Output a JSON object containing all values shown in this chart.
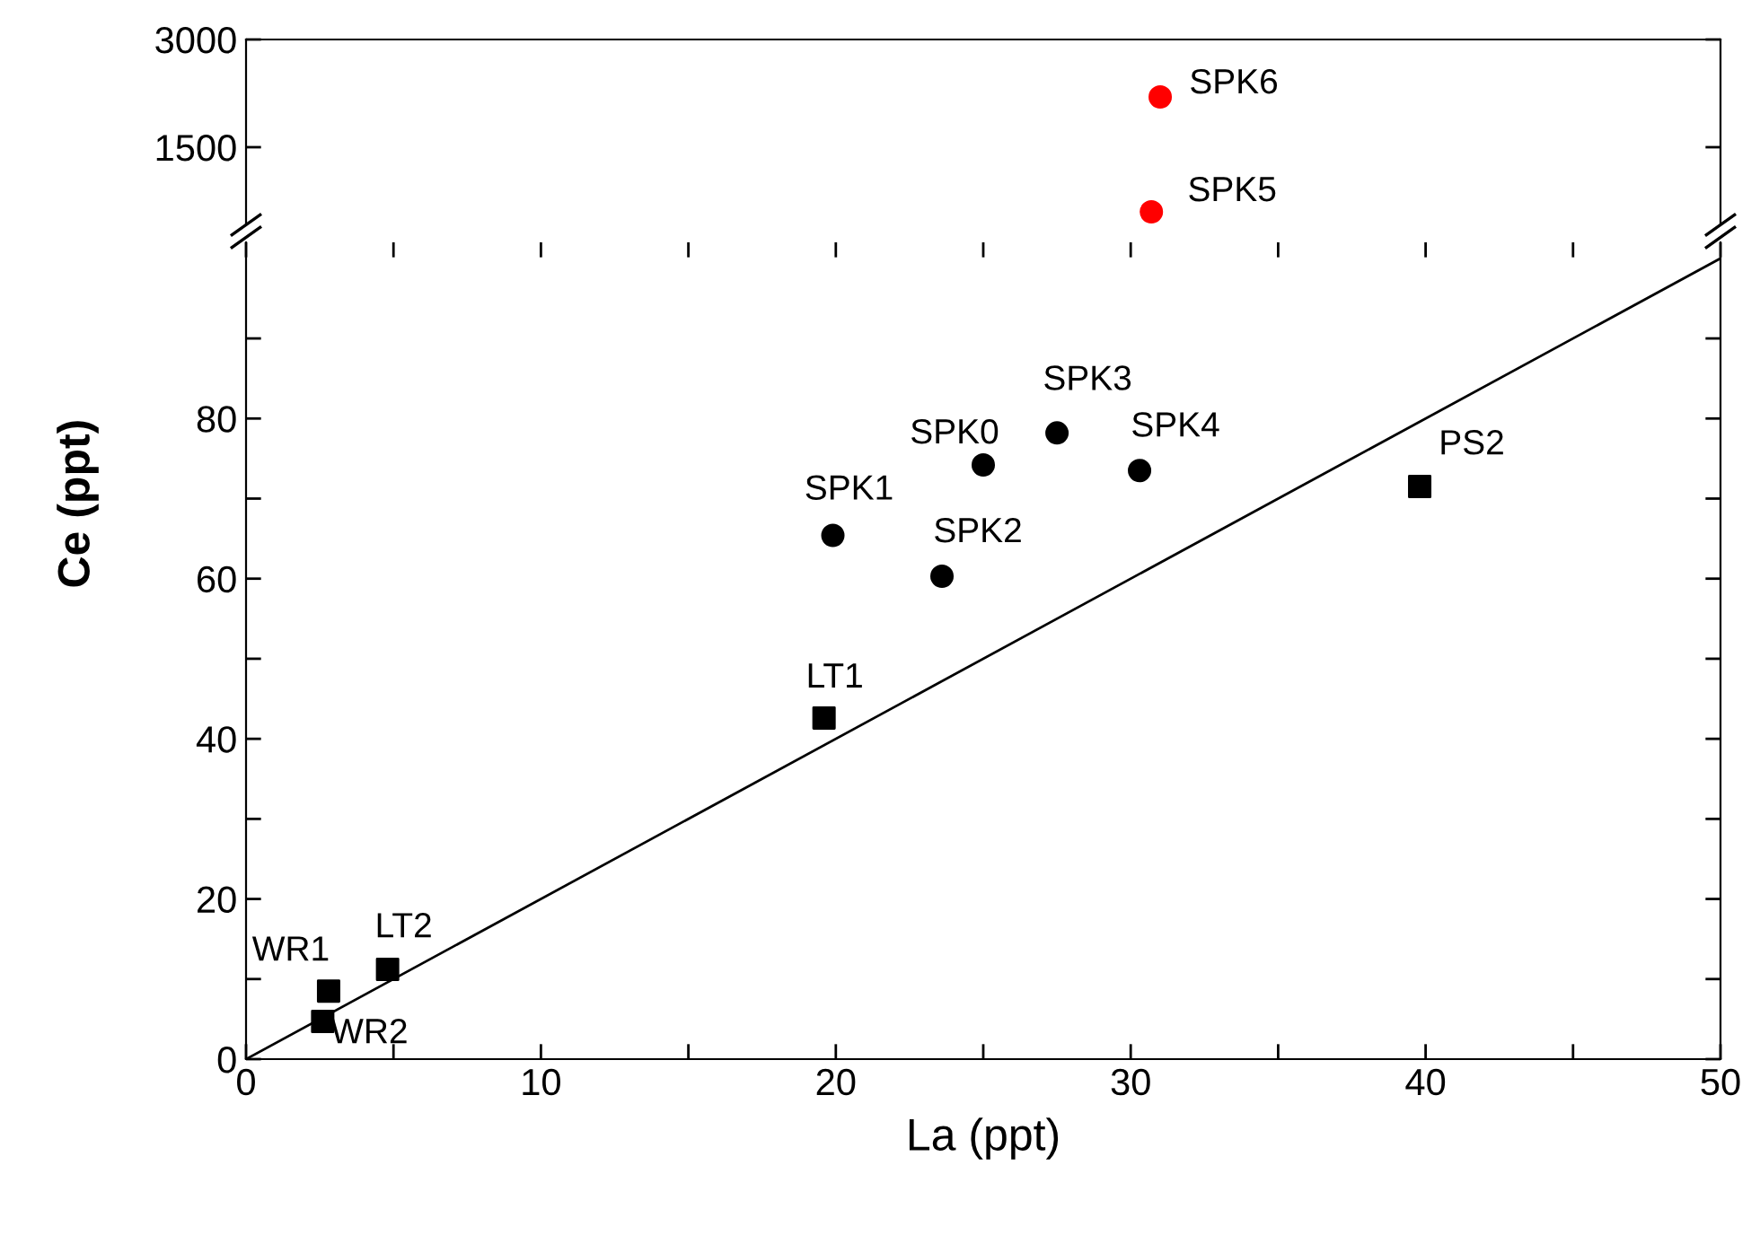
{
  "chart_data": [
    {
      "type": "scatter",
      "xlim": [
        0,
        50
      ],
      "ylim": [
        425,
        3000
      ],
      "yticks": [
        1500,
        3000
      ],
      "tick_labels": "y",
      "grid": false,
      "series": [
        {
          "color": "#ff0000",
          "marker": "circle",
          "x": [
            30.7,
            31.0
          ],
          "values": [
            600,
            2200
          ]
        }
      ],
      "annotations": [
        {
          "text": "SPK5",
          "x": 30.7,
          "y": 600
        },
        {
          "text": "SPK6",
          "x": 31.0,
          "y": 2200
        }
      ]
    },
    {
      "type": "scatter",
      "xlabel": "La (ppt)",
      "ylabel": "Ce (ppt)",
      "xlim": [
        0,
        50
      ],
      "ylim": [
        0,
        102
      ],
      "xticks": [
        0,
        {
          "value": 5,
          "label": null
        },
        10,
        {
          "value": 15,
          "label": null
        },
        20,
        {
          "value": 25,
          "label": null
        },
        30,
        {
          "value": 35,
          "label": null
        },
        40,
        {
          "value": 45,
          "label": null
        },
        50
      ],
      "yticks": [
        0,
        {
          "value": 10,
          "label": null
        },
        20,
        {
          "value": 30,
          "label": null
        },
        40,
        {
          "value": 50,
          "label": null
        },
        60,
        {
          "value": 70,
          "label": null
        },
        80,
        {
          "value": 90,
          "label": null
        }
      ],
      "grid": false,
      "series": [
        {
          "type": "line",
          "color": "#000000",
          "x": [
            0,
            50
          ],
          "values": [
            0,
            100
          ]
        },
        {
          "color": "#000000",
          "marker": "square",
          "x": [
            2.8,
            2.6,
            4.8,
            19.6,
            39.8
          ],
          "values": [
            8.5,
            4.7,
            11.2,
            42.6,
            71.5
          ]
        },
        {
          "color": "#000000",
          "marker": "circle",
          "x": [
            19.9,
            23.6,
            25.0,
            27.5,
            30.3
          ],
          "values": [
            65.4,
            60.3,
            74.2,
            78.2,
            73.5
          ]
        }
      ],
      "annotations": [
        {
          "text": "WR1",
          "x": 2.8,
          "y": 8.5
        },
        {
          "text": "WR2",
          "x": 2.6,
          "y": 4.7
        },
        {
          "text": "LT2",
          "x": 4.8,
          "y": 11.2
        },
        {
          "text": "LT1",
          "x": 19.6,
          "y": 42.6
        },
        {
          "text": "PS2",
          "x": 39.8,
          "y": 71.5
        },
        {
          "text": "SPK1",
          "x": 19.9,
          "y": 65.4
        },
        {
          "text": "SPK2",
          "x": 23.6,
          "y": 60.3
        },
        {
          "text": "SPK0",
          "x": 25.0,
          "y": 74.2
        },
        {
          "text": "SPK3",
          "x": 27.5,
          "y": 78.2
        },
        {
          "text": "SPK4",
          "x": 30.3,
          "y": 73.5
        }
      ]
    }
  ]
}
